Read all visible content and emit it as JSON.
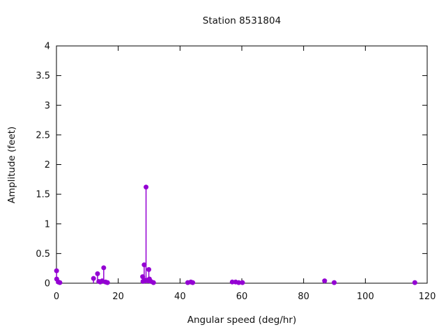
{
  "chart_data": {
    "type": "scatter",
    "style": "impulses+points",
    "title": "Station 8531804",
    "xlabel": "Angular speed (deg/hr)",
    "ylabel": "Amplitude (feet)",
    "xlim": [
      0,
      120
    ],
    "ylim": [
      0,
      4
    ],
    "xticks": [
      0,
      20,
      40,
      60,
      80,
      100,
      120
    ],
    "yticks": [
      0,
      0.5,
      1,
      1.5,
      2,
      2.5,
      3,
      3.5,
      4
    ],
    "grid": false,
    "legend": "none",
    "border": "box-with-mirrored-ticks",
    "marker_color": "#9400d3",
    "axis_color": "#000000",
    "points": [
      [
        0.04,
        0.21
      ],
      [
        0.08,
        0.07
      ],
      [
        0.6,
        0.02
      ],
      [
        1.1,
        0.01
      ],
      [
        12.0,
        0.08
      ],
      [
        13.3,
        0.16
      ],
      [
        13.7,
        0.03
      ],
      [
        14.2,
        0.02
      ],
      [
        14.8,
        0.04
      ],
      [
        15.3,
        0.26
      ],
      [
        15.9,
        0.02
      ],
      [
        16.5,
        0.01
      ],
      [
        27.9,
        0.11
      ],
      [
        28.0,
        0.03
      ],
      [
        28.4,
        0.31
      ],
      [
        28.6,
        0.05
      ],
      [
        29.0,
        1.62
      ],
      [
        29.5,
        0.05
      ],
      [
        29.9,
        0.23
      ],
      [
        30.1,
        0.07
      ],
      [
        30.6,
        0.03
      ],
      [
        31.4,
        0.01
      ],
      [
        42.5,
        0.01
      ],
      [
        43.5,
        0.02
      ],
      [
        44.1,
        0.01
      ],
      [
        56.9,
        0.02
      ],
      [
        58.0,
        0.02
      ],
      [
        59.0,
        0.01
      ],
      [
        60.2,
        0.01
      ],
      [
        86.8,
        0.04
      ],
      [
        89.9,
        0.01
      ],
      [
        116.0,
        0.01
      ]
    ]
  }
}
